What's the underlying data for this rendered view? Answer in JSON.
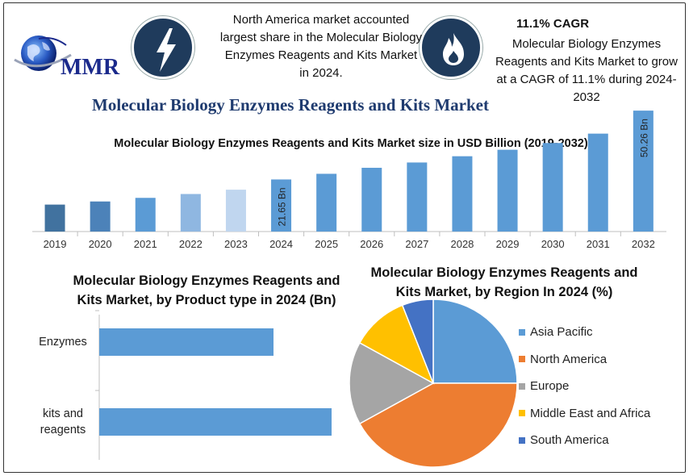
{
  "logo": {
    "text": "MMR"
  },
  "header": {
    "note_left": "North America market accounted largest share in the Molecular Biology Enzymes Reagents and Kits Market in 2024.",
    "cagr_title": "11.1% CAGR",
    "note_right": "Molecular Biology Enzymes Reagents and Kits Market to grow at a CAGR of 11.1% during 2024-2032",
    "main_title": "Molecular Biology Enzymes Reagents and Kits Market"
  },
  "icons": {
    "left": "lightning-bolt-icon",
    "right": "flame-icon"
  },
  "colors": {
    "bar_main": "#5b9bd5",
    "bar_2019": "#41729f",
    "bar_2020": "#4c82b9",
    "bar_2021": "#5b9bd5",
    "bar_2022": "#8fb7e1",
    "bar_2023": "#c0d6ef",
    "title_blue": "#1f3b6f",
    "icon_bg": "#1f3b5c"
  },
  "chart_data": [
    {
      "type": "bar",
      "title": "Molecular Biology Enzymes Reagents and Kits Market size in USD Billion (2019-2032)",
      "categories": [
        "2019",
        "2020",
        "2021",
        "2022",
        "2023",
        "2024",
        "2025",
        "2026",
        "2027",
        "2028",
        "2029",
        "2030",
        "2031",
        "2032"
      ],
      "values": [
        11.2,
        12.5,
        14.0,
        15.6,
        17.4,
        21.65,
        24.0,
        26.5,
        28.7,
        31.3,
        34.0,
        36.8,
        40.7,
        50.26
      ],
      "data_labels": {
        "2024": "21.65 Bn",
        "2032": "50.26 Bn"
      },
      "ylim": [
        0,
        56
      ],
      "xlabel": "",
      "ylabel": ""
    },
    {
      "type": "bar",
      "orientation": "horizontal",
      "title": "Molecular Biology Enzymes Reagents and Kits Market, by Product type in 2024 (Bn)",
      "categories": [
        "Enzymes",
        "kits and reagents"
      ],
      "category_lines": [
        [
          "Enzymes"
        ],
        [
          "kits and",
          "reagents"
        ]
      ],
      "values": [
        9.0,
        12.0
      ],
      "xlim": [
        0,
        13
      ]
    },
    {
      "type": "pie",
      "title": "Molecular Biology Enzymes Reagents and Kits Market, by Region In 2024 (%)",
      "labels": [
        "Asia Pacific",
        "North America",
        "Europe",
        "Middle East and Africa",
        "South America"
      ],
      "values": [
        25,
        42,
        16,
        11,
        6
      ],
      "colors": [
        "#5b9bd5",
        "#ed7d31",
        "#a5a5a5",
        "#ffc000",
        "#4472c4"
      ]
    }
  ]
}
